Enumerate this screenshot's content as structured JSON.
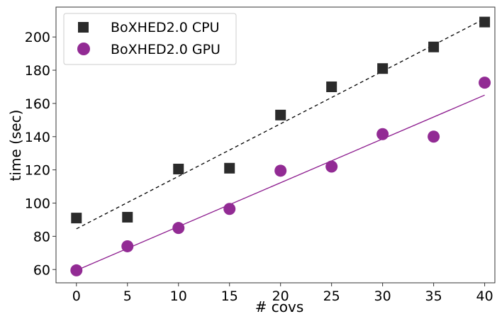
{
  "chart_data": {
    "type": "scatter",
    "xlabel": "# covs",
    "ylabel": "time (sec)",
    "xlim": [
      -2,
      41
    ],
    "ylim": [
      52,
      218
    ],
    "xticks": [
      0,
      5,
      10,
      15,
      20,
      25,
      30,
      35,
      40
    ],
    "yticks": [
      60,
      80,
      100,
      120,
      140,
      160,
      180,
      200
    ],
    "grid": false,
    "legend_position": "top-left",
    "series": [
      {
        "name": "BoXHED2.0 CPU",
        "marker": "square",
        "color": "#2b2b2b",
        "x": [
          0,
          5,
          10,
          15,
          20,
          25,
          30,
          35,
          40
        ],
        "y": [
          91,
          91.5,
          120.5,
          121,
          153,
          170,
          181,
          194,
          209
        ],
        "fit": {
          "style": "dashed",
          "color": "#000000",
          "x": [
            0,
            40
          ],
          "y": [
            84.5,
            211
          ]
        }
      },
      {
        "name": "BoXHED2.0 GPU",
        "marker": "circle",
        "color": "#922b94",
        "x": [
          0,
          5,
          10,
          15,
          20,
          25,
          30,
          35,
          40
        ],
        "y": [
          59.5,
          74,
          85,
          96.5,
          119.5,
          122,
          141.5,
          140,
          172.5
        ],
        "fit": {
          "style": "solid",
          "color": "#8a178c",
          "x": [
            0,
            40
          ],
          "y": [
            59.5,
            165
          ]
        }
      }
    ]
  }
}
